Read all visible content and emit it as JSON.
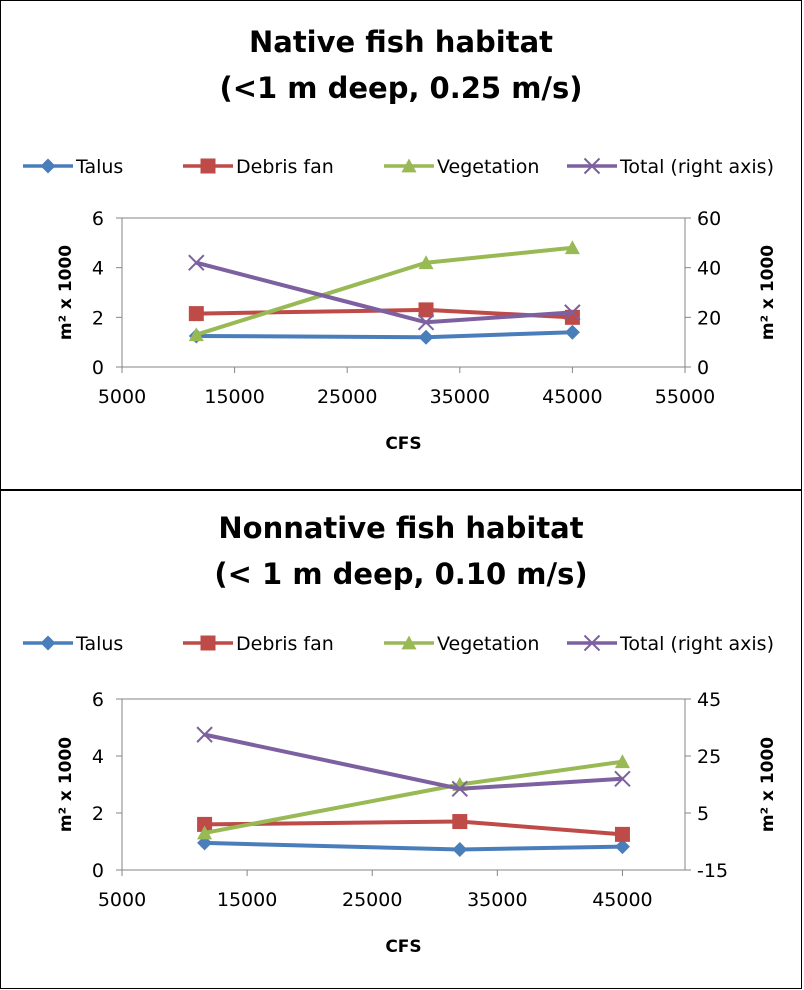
{
  "chart_data": [
    {
      "type": "line",
      "title_lines": [
        "Native fish habitat",
        "(<1 m deep, 0.25 m/s)"
      ],
      "xlabel": "CFS",
      "ylabel": "m² x 1000",
      "y2label": "m² x 1000",
      "xlim": [
        5000,
        55000
      ],
      "xticks": [
        "5000",
        "15000",
        "25000",
        "35000",
        "45000",
        "55000"
      ],
      "ylim": [
        0,
        6
      ],
      "yticks": [
        "0",
        "2",
        "4",
        "6"
      ],
      "y2lim": [
        0,
        60
      ],
      "y2ticks": [
        "0",
        "20",
        "40",
        "60"
      ],
      "legend_position": "top",
      "grid": false,
      "series": [
        {
          "name": "Talus",
          "axis": "left",
          "color": "#4a7ebb",
          "marker": "diamond",
          "x": [
            11600,
            32000,
            45000
          ],
          "y": [
            1.25,
            1.2,
            1.4
          ]
        },
        {
          "name": "Debris fan",
          "axis": "left",
          "color": "#be4b48",
          "marker": "square",
          "x": [
            11600,
            32000,
            45000
          ],
          "y": [
            2.15,
            2.3,
            2.0
          ]
        },
        {
          "name": "Vegetation",
          "axis": "left",
          "color": "#98b954",
          "marker": "triangle",
          "x": [
            11600,
            32000,
            45000
          ],
          "y": [
            1.3,
            4.2,
            4.8
          ]
        },
        {
          "name": "Total (right axis)",
          "axis": "right",
          "color": "#7d60a0",
          "marker": "x",
          "x": [
            11600,
            32000,
            45000
          ],
          "y": [
            42,
            18,
            22
          ]
        }
      ]
    },
    {
      "type": "line",
      "title_lines": [
        "Nonnative fish habitat",
        "(< 1 m deep, 0.10 m/s)"
      ],
      "xlabel": "CFS",
      "ylabel": "m² x 1000",
      "y2label": "m² x 1000",
      "xlim": [
        5000,
        50000
      ],
      "xticks": [
        "5000",
        "15000",
        "25000",
        "35000",
        "45000"
      ],
      "ylim": [
        0,
        6
      ],
      "yticks": [
        "0",
        "2",
        "4",
        "6"
      ],
      "y2lim": [
        -15,
        45
      ],
      "y2ticks": [
        "-15",
        "5",
        "25",
        "45"
      ],
      "legend_position": "top",
      "grid": false,
      "series": [
        {
          "name": "Talus",
          "axis": "left",
          "color": "#4a7ebb",
          "marker": "diamond",
          "x": [
            11600,
            32000,
            45000
          ],
          "y": [
            0.95,
            0.72,
            0.82
          ]
        },
        {
          "name": "Debris fan",
          "axis": "left",
          "color": "#be4b48",
          "marker": "square",
          "x": [
            11600,
            32000,
            45000
          ],
          "y": [
            1.6,
            1.7,
            1.25
          ]
        },
        {
          "name": "Vegetation",
          "axis": "left",
          "color": "#98b954",
          "marker": "triangle",
          "x": [
            11600,
            32000,
            45000
          ],
          "y": [
            1.3,
            3.0,
            3.8
          ]
        },
        {
          "name": "Total (right axis)",
          "axis": "right",
          "color": "#7d60a0",
          "marker": "x",
          "x": [
            11600,
            32000,
            45000
          ],
          "y": [
            32.5,
            13.5,
            17
          ]
        }
      ]
    }
  ]
}
